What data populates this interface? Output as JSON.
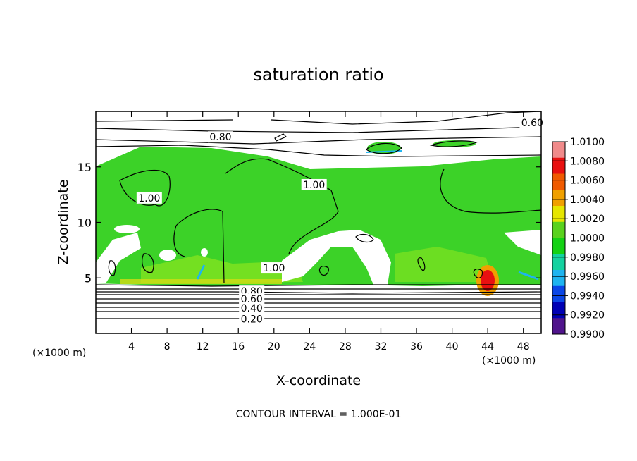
{
  "chart_data": {
    "type": "heatmap",
    "title": "saturation ratio",
    "xlabel": "X-coordinate",
    "ylabel": "Z-coordinate",
    "x_unit_left": "(×1000 m)",
    "x_unit_right": "(×1000 m)",
    "footer": "CONTOUR INTERVAL = 1.000E-01",
    "xlim": [
      0,
      50
    ],
    "ylim": [
      0,
      20
    ],
    "xticks": [
      4,
      8,
      12,
      16,
      20,
      24,
      28,
      32,
      36,
      40,
      44,
      48
    ],
    "yticks": [
      5,
      10,
      15
    ],
    "colorbar": {
      "levels": [
        "1.0100",
        "1.0080",
        "1.0060",
        "1.0040",
        "1.0020",
        "1.0000",
        "0.9980",
        "0.9960",
        "0.9940",
        "0.9920",
        "0.9900"
      ],
      "colors": [
        "#f08a8a",
        "#e81010",
        "#f05a00",
        "#f0a000",
        "#e6e600",
        "#5ad21e",
        "#14d214",
        "#14d2a0",
        "#1eb4f0",
        "#0a46e6",
        "#0000b4",
        "#50148c"
      ]
    },
    "contour_labels": [
      {
        "text": "0.80",
        "x": 14.0,
        "y": 17.7
      },
      {
        "text": "0.60",
        "x": 49.0,
        "y": 19.0
      },
      {
        "text": "1.00",
        "x": 6.0,
        "y": 12.2
      },
      {
        "text": "1.00",
        "x": 24.5,
        "y": 13.4
      },
      {
        "text": "1.00",
        "x": 20.0,
        "y": 5.9
      },
      {
        "text": "0.80",
        "x": 17.5,
        "y": 3.8
      },
      {
        "text": "0.60",
        "x": 17.5,
        "y": 3.1
      },
      {
        "text": "0.40",
        "x": 17.5,
        "y": 2.3
      },
      {
        "text": "0.20",
        "x": 17.5,
        "y": 1.3
      }
    ]
  }
}
